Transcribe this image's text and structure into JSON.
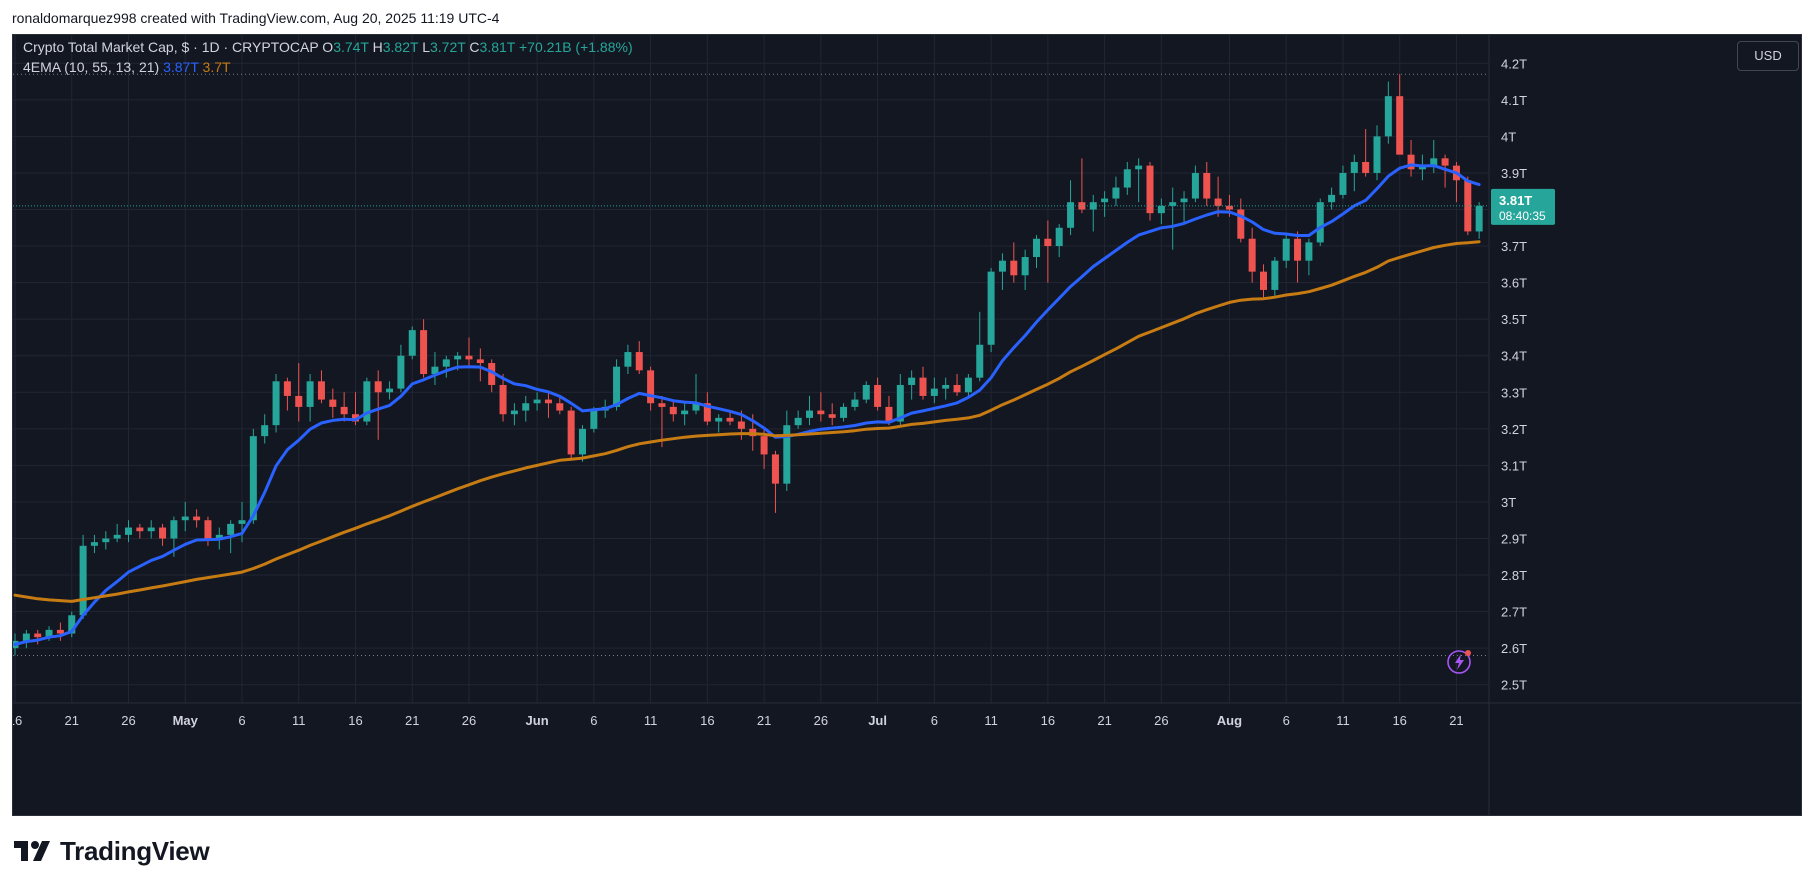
{
  "caption": "ronaldomarquez998 created with TradingView.com, Aug 20, 2025 11:19 UTC-4",
  "legend": {
    "title": "Crypto Total Market Cap, $ · 1D · CRYPTOCAP",
    "o_label": "O",
    "o_value": "3.74T",
    "h_label": "H",
    "h_value": "3.82T",
    "l_label": "L",
    "l_value": "3.72T",
    "c_label": "C",
    "c_value": "3.81T",
    "change": "+70.21B (+1.88%)",
    "ema_label": "4EMA (10, 55, 13, 21)",
    "ema_fast": "3.87T",
    "ema_slow": "3.7T"
  },
  "currency_button": "USD",
  "price_tag": {
    "value": "3.81T",
    "countdown": "08:40:35"
  },
  "brand": "TradingView",
  "colors": {
    "up": "#26a69a",
    "down": "#ef5350",
    "ema_fast": "#2962ff",
    "ema_slow": "#c77c13",
    "bg": "#131722",
    "grid": "#222633",
    "text": "#d1d4dc"
  },
  "chart_data": {
    "type": "candlestick",
    "title": "Crypto Total Market Cap, $ · 1D · CRYPTOCAP",
    "ylim": [
      2.45,
      4.25
    ],
    "y_ticks": [
      "2.5T",
      "2.6T",
      "2.7T",
      "2.8T",
      "2.9T",
      "3T",
      "3.1T",
      "3.2T",
      "3.3T",
      "3.4T",
      "3.5T",
      "3.6T",
      "3.7T",
      "3.8T",
      "3.9T",
      "4T",
      "4.1T",
      "4.2T"
    ],
    "y_tick_values": [
      2.5,
      2.6,
      2.7,
      2.8,
      2.9,
      3.0,
      3.1,
      3.2,
      3.3,
      3.4,
      3.5,
      3.6,
      3.7,
      3.8,
      3.9,
      4.0,
      4.1,
      4.2
    ],
    "x_ticks": [
      {
        "label": "16",
        "day": 0
      },
      {
        "label": "21",
        "day": 5
      },
      {
        "label": "26",
        "day": 10
      },
      {
        "label": "May",
        "day": 15,
        "bold": true
      },
      {
        "label": "6",
        "day": 20
      },
      {
        "label": "11",
        "day": 25
      },
      {
        "label": "16",
        "day": 30
      },
      {
        "label": "21",
        "day": 35
      },
      {
        "label": "26",
        "day": 40
      },
      {
        "label": "Jun",
        "day": 46,
        "bold": true
      },
      {
        "label": "6",
        "day": 51
      },
      {
        "label": "11",
        "day": 56
      },
      {
        "label": "16",
        "day": 61
      },
      {
        "label": "21",
        "day": 66
      },
      {
        "label": "26",
        "day": 71
      },
      {
        "label": "Jul",
        "day": 76,
        "bold": true
      },
      {
        "label": "6",
        "day": 81
      },
      {
        "label": "11",
        "day": 86
      },
      {
        "label": "16",
        "day": 91
      },
      {
        "label": "21",
        "day": 96
      },
      {
        "label": "26",
        "day": 101
      },
      {
        "label": "Aug",
        "day": 107,
        "bold": true
      },
      {
        "label": "6",
        "day": 112
      },
      {
        "label": "11",
        "day": 117
      },
      {
        "label": "16",
        "day": 122
      },
      {
        "label": "21",
        "day": 127
      }
    ],
    "candles": [
      [
        2.6,
        2.64,
        2.58,
        2.62
      ],
      [
        2.62,
        2.65,
        2.6,
        2.64
      ],
      [
        2.64,
        2.65,
        2.61,
        2.63
      ],
      [
        2.63,
        2.66,
        2.62,
        2.65
      ],
      [
        2.65,
        2.67,
        2.62,
        2.64
      ],
      [
        2.64,
        2.7,
        2.63,
        2.69
      ],
      [
        2.69,
        2.91,
        2.68,
        2.88
      ],
      [
        2.88,
        2.91,
        2.86,
        2.89
      ],
      [
        2.89,
        2.92,
        2.87,
        2.9
      ],
      [
        2.9,
        2.94,
        2.89,
        2.91
      ],
      [
        2.91,
        2.95,
        2.89,
        2.93
      ],
      [
        2.93,
        2.94,
        2.9,
        2.92
      ],
      [
        2.92,
        2.95,
        2.9,
        2.93
      ],
      [
        2.93,
        2.94,
        2.88,
        2.9
      ],
      [
        2.9,
        2.96,
        2.85,
        2.95
      ],
      [
        2.95,
        3.0,
        2.92,
        2.96
      ],
      [
        2.96,
        2.98,
        2.93,
        2.95
      ],
      [
        2.95,
        2.96,
        2.88,
        2.9
      ],
      [
        2.9,
        2.93,
        2.87,
        2.91
      ],
      [
        2.91,
        2.95,
        2.86,
        2.94
      ],
      [
        2.94,
        3.0,
        2.89,
        2.95
      ],
      [
        2.95,
        3.2,
        2.94,
        3.18
      ],
      [
        3.18,
        3.24,
        3.16,
        3.21
      ],
      [
        3.21,
        3.35,
        3.19,
        3.33
      ],
      [
        3.33,
        3.34,
        3.25,
        3.29
      ],
      [
        3.29,
        3.38,
        3.22,
        3.26
      ],
      [
        3.26,
        3.35,
        3.22,
        3.33
      ],
      [
        3.33,
        3.36,
        3.27,
        3.28
      ],
      [
        3.28,
        3.31,
        3.23,
        3.26
      ],
      [
        3.26,
        3.3,
        3.22,
        3.24
      ],
      [
        3.24,
        3.3,
        3.21,
        3.22
      ],
      [
        3.22,
        3.34,
        3.21,
        3.33
      ],
      [
        3.33,
        3.36,
        3.17,
        3.3
      ],
      [
        3.3,
        3.33,
        3.28,
        3.31
      ],
      [
        3.31,
        3.43,
        3.3,
        3.4
      ],
      [
        3.4,
        3.48,
        3.39,
        3.47
      ],
      [
        3.47,
        3.5,
        3.34,
        3.35
      ],
      [
        3.35,
        3.41,
        3.32,
        3.37
      ],
      [
        3.37,
        3.4,
        3.34,
        3.39
      ],
      [
        3.39,
        3.41,
        3.36,
        3.4
      ],
      [
        3.4,
        3.45,
        3.37,
        3.39
      ],
      [
        3.39,
        3.42,
        3.33,
        3.38
      ],
      [
        3.38,
        3.39,
        3.3,
        3.32
      ],
      [
        3.32,
        3.35,
        3.22,
        3.24
      ],
      [
        3.24,
        3.27,
        3.21,
        3.25
      ],
      [
        3.25,
        3.29,
        3.22,
        3.27
      ],
      [
        3.27,
        3.3,
        3.25,
        3.28
      ],
      [
        3.28,
        3.3,
        3.23,
        3.27
      ],
      [
        3.27,
        3.29,
        3.24,
        3.25
      ],
      [
        3.25,
        3.26,
        3.12,
        3.13
      ],
      [
        3.13,
        3.21,
        3.11,
        3.2
      ],
      [
        3.2,
        3.26,
        3.19,
        3.25
      ],
      [
        3.25,
        3.28,
        3.23,
        3.26
      ],
      [
        3.26,
        3.39,
        3.25,
        3.37
      ],
      [
        3.37,
        3.43,
        3.35,
        3.41
      ],
      [
        3.41,
        3.44,
        3.35,
        3.36
      ],
      [
        3.36,
        3.37,
        3.25,
        3.27
      ],
      [
        3.27,
        3.29,
        3.15,
        3.26
      ],
      [
        3.26,
        3.28,
        3.22,
        3.24
      ],
      [
        3.24,
        3.27,
        3.21,
        3.25
      ],
      [
        3.25,
        3.35,
        3.24,
        3.27
      ],
      [
        3.27,
        3.3,
        3.21,
        3.22
      ],
      [
        3.22,
        3.24,
        3.19,
        3.23
      ],
      [
        3.23,
        3.25,
        3.21,
        3.22
      ],
      [
        3.22,
        3.25,
        3.17,
        3.2
      ],
      [
        3.2,
        3.24,
        3.14,
        3.18
      ],
      [
        3.18,
        3.2,
        3.09,
        3.13
      ],
      [
        3.13,
        3.14,
        2.97,
        3.05
      ],
      [
        3.05,
        3.25,
        3.03,
        3.21
      ],
      [
        3.21,
        3.25,
        3.2,
        3.23
      ],
      [
        3.23,
        3.29,
        3.21,
        3.25
      ],
      [
        3.25,
        3.3,
        3.22,
        3.24
      ],
      [
        3.24,
        3.27,
        3.21,
        3.23
      ],
      [
        3.23,
        3.27,
        3.22,
        3.26
      ],
      [
        3.26,
        3.3,
        3.25,
        3.28
      ],
      [
        3.28,
        3.33,
        3.27,
        3.32
      ],
      [
        3.32,
        3.34,
        3.25,
        3.26
      ],
      [
        3.26,
        3.29,
        3.21,
        3.22
      ],
      [
        3.22,
        3.35,
        3.21,
        3.32
      ],
      [
        3.32,
        3.36,
        3.28,
        3.34
      ],
      [
        3.34,
        3.37,
        3.28,
        3.29
      ],
      [
        3.29,
        3.34,
        3.27,
        3.31
      ],
      [
        3.31,
        3.34,
        3.28,
        3.32
      ],
      [
        3.32,
        3.35,
        3.29,
        3.3
      ],
      [
        3.3,
        3.35,
        3.29,
        3.34
      ],
      [
        3.34,
        3.52,
        3.33,
        3.43
      ],
      [
        3.43,
        3.64,
        3.41,
        3.63
      ],
      [
        3.63,
        3.68,
        3.58,
        3.66
      ],
      [
        3.66,
        3.71,
        3.6,
        3.62
      ],
      [
        3.62,
        3.69,
        3.58,
        3.67
      ],
      [
        3.67,
        3.73,
        3.64,
        3.72
      ],
      [
        3.72,
        3.77,
        3.6,
        3.7
      ],
      [
        3.7,
        3.76,
        3.67,
        3.75
      ],
      [
        3.75,
        3.88,
        3.73,
        3.82
      ],
      [
        3.82,
        3.94,
        3.79,
        3.8
      ],
      [
        3.8,
        3.84,
        3.74,
        3.82
      ],
      [
        3.82,
        3.85,
        3.78,
        3.83
      ],
      [
        3.83,
        3.89,
        3.81,
        3.86
      ],
      [
        3.86,
        3.93,
        3.84,
        3.91
      ],
      [
        3.91,
        3.94,
        3.82,
        3.92
      ],
      [
        3.92,
        3.93,
        3.77,
        3.79
      ],
      [
        3.79,
        3.83,
        3.76,
        3.81
      ],
      [
        3.81,
        3.86,
        3.69,
        3.82
      ],
      [
        3.82,
        3.85,
        3.76,
        3.83
      ],
      [
        3.83,
        3.92,
        3.82,
        3.9
      ],
      [
        3.9,
        3.93,
        3.81,
        3.83
      ],
      [
        3.83,
        3.89,
        3.78,
        3.81
      ],
      [
        3.81,
        3.84,
        3.78,
        3.8
      ],
      [
        3.8,
        3.83,
        3.71,
        3.72
      ],
      [
        3.72,
        3.75,
        3.6,
        3.63
      ],
      [
        3.63,
        3.65,
        3.56,
        3.58
      ],
      [
        3.58,
        3.67,
        3.56,
        3.66
      ],
      [
        3.66,
        3.73,
        3.64,
        3.72
      ],
      [
        3.72,
        3.74,
        3.6,
        3.66
      ],
      [
        3.66,
        3.72,
        3.62,
        3.71
      ],
      [
        3.71,
        3.83,
        3.7,
        3.82
      ],
      [
        3.82,
        3.86,
        3.8,
        3.84
      ],
      [
        3.84,
        3.92,
        3.83,
        3.9
      ],
      [
        3.9,
        3.95,
        3.85,
        3.93
      ],
      [
        3.93,
        4.02,
        3.89,
        3.9
      ],
      [
        3.9,
        4.03,
        3.88,
        4.0
      ],
      [
        4.0,
        4.15,
        3.98,
        4.11
      ],
      [
        4.11,
        4.17,
        3.96,
        3.95
      ],
      [
        3.95,
        3.99,
        3.89,
        3.91
      ],
      [
        3.91,
        3.95,
        3.88,
        3.92
      ],
      [
        3.92,
        3.99,
        3.9,
        3.94
      ],
      [
        3.94,
        3.95,
        3.86,
        3.92
      ],
      [
        3.92,
        3.93,
        3.82,
        3.88
      ],
      [
        3.88,
        3.89,
        3.73,
        3.74
      ],
      [
        3.74,
        3.82,
        3.72,
        3.81
      ]
    ],
    "series": [
      {
        "name": "EMA 10",
        "color": "#2962ff",
        "last": "3.87T",
        "values": [
          2.61,
          2.618,
          2.622,
          2.63,
          2.634,
          2.646,
          2.69,
          2.726,
          2.758,
          2.782,
          2.808,
          2.824,
          2.84,
          2.851,
          2.868,
          2.884,
          2.896,
          2.897,
          2.898,
          2.905,
          2.914,
          2.962,
          3.026,
          3.099,
          3.143,
          3.169,
          3.199,
          3.216,
          3.223,
          3.226,
          3.225,
          3.243,
          3.254,
          3.264,
          3.289,
          3.323,
          3.334,
          3.347,
          3.359,
          3.369,
          3.37,
          3.369,
          3.356,
          3.338,
          3.323,
          3.318,
          3.308,
          3.301,
          3.289,
          3.27,
          3.249,
          3.252,
          3.255,
          3.266,
          3.283,
          3.297,
          3.291,
          3.285,
          3.277,
          3.273,
          3.271,
          3.262,
          3.255,
          3.248,
          3.239,
          3.222,
          3.202,
          3.177,
          3.179,
          3.185,
          3.193,
          3.199,
          3.202,
          3.205,
          3.209,
          3.216,
          3.219,
          3.218,
          3.23,
          3.243,
          3.249,
          3.256,
          3.263,
          3.271,
          3.286,
          3.306,
          3.34,
          3.386,
          3.422,
          3.455,
          3.492,
          3.525,
          3.557,
          3.589,
          3.616,
          3.644,
          3.666,
          3.688,
          3.71,
          3.73,
          3.74,
          3.75,
          3.754,
          3.762,
          3.774,
          3.785,
          3.794,
          3.793,
          3.782,
          3.766,
          3.745,
          3.735,
          3.733,
          3.729,
          3.729,
          3.751,
          3.767,
          3.788,
          3.81,
          3.825,
          3.857,
          3.891,
          3.913,
          3.922,
          3.919,
          3.92,
          3.91,
          3.9,
          3.878,
          3.868
        ]
      },
      {
        "name": "EMA 55",
        "color": "#c77c13",
        "last": "3.7T",
        "values": [
          2.745,
          2.74,
          2.735,
          2.732,
          2.73,
          2.728,
          2.733,
          2.738,
          2.743,
          2.748,
          2.754,
          2.759,
          2.765,
          2.77,
          2.776,
          2.782,
          2.788,
          2.793,
          2.798,
          2.803,
          2.808,
          2.818,
          2.83,
          2.844,
          2.856,
          2.868,
          2.881,
          2.893,
          2.905,
          2.917,
          2.928,
          2.94,
          2.951,
          2.962,
          2.975,
          2.988,
          3.0,
          3.012,
          3.024,
          3.036,
          3.047,
          3.058,
          3.068,
          3.077,
          3.085,
          3.093,
          3.1,
          3.107,
          3.114,
          3.117,
          3.12,
          3.126,
          3.132,
          3.141,
          3.151,
          3.159,
          3.164,
          3.169,
          3.173,
          3.177,
          3.18,
          3.182,
          3.184,
          3.186,
          3.187,
          3.187,
          3.185,
          3.181,
          3.182,
          3.184,
          3.186,
          3.188,
          3.19,
          3.192,
          3.195,
          3.199,
          3.201,
          3.202,
          3.207,
          3.212,
          3.215,
          3.219,
          3.223,
          3.226,
          3.23,
          3.237,
          3.251,
          3.266,
          3.279,
          3.293,
          3.308,
          3.322,
          3.338,
          3.356,
          3.371,
          3.387,
          3.403,
          3.419,
          3.436,
          3.453,
          3.465,
          3.477,
          3.489,
          3.501,
          3.515,
          3.526,
          3.536,
          3.546,
          3.552,
          3.555,
          3.556,
          3.56,
          3.566,
          3.57,
          3.575,
          3.584,
          3.593,
          3.605,
          3.617,
          3.628,
          3.642,
          3.659,
          3.669,
          3.678,
          3.687,
          3.696,
          3.702,
          3.707,
          3.709,
          3.712
        ]
      }
    ]
  }
}
